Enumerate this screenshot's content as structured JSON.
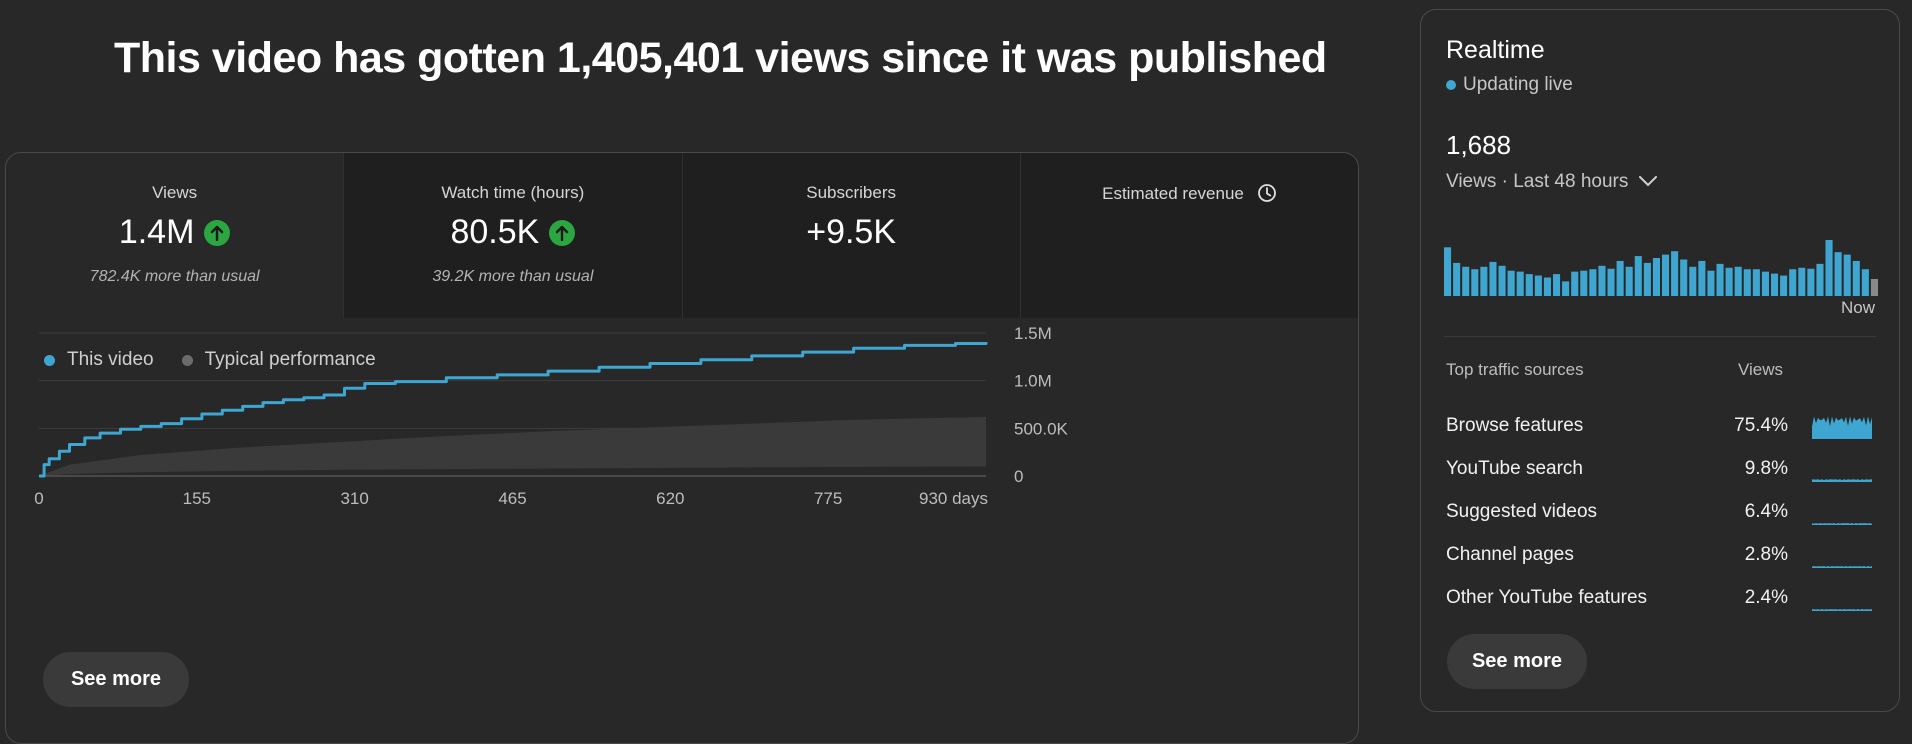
{
  "headline": "This video has gotten 1,405,401 views since it was published",
  "metrics": [
    {
      "label": "Views",
      "value": "1.4M",
      "trend": "up",
      "sub": "782.4K more than usual"
    },
    {
      "label": "Watch time (hours)",
      "value": "80.5K",
      "trend": "up",
      "sub": "39.2K more than usual"
    },
    {
      "label": "Subscribers",
      "value": "+9.5K",
      "trend": "",
      "sub": ""
    },
    {
      "label": "Estimated revenue",
      "value": "",
      "trend": "",
      "sub": ""
    }
  ],
  "legend": {
    "this_video": "This video",
    "typical": "Typical performance"
  },
  "see_more_label": "See more",
  "colors": {
    "accent": "#3ea6d0",
    "typical_fill": "#3c3c3c",
    "up": "#2ba640"
  },
  "chart_data": {
    "type": "line",
    "xlabel": "",
    "x_tick_labels": [
      "0",
      "155",
      "310",
      "465",
      "620",
      "775",
      "930 days"
    ],
    "x_ticks": [
      0,
      155,
      310,
      465,
      620,
      775,
      930
    ],
    "y_tick_labels": [
      "0",
      "500.0K",
      "1.0M",
      "1.5M"
    ],
    "y_ticks": [
      0,
      500000,
      1000000,
      1500000
    ],
    "xlim": [
      0,
      930
    ],
    "ylim": [
      0,
      1500000
    ],
    "grid": true,
    "legend_position": "top-left",
    "series": [
      {
        "name": "This video",
        "x": [
          0,
          5,
          10,
          20,
          30,
          45,
          60,
          80,
          100,
          120,
          140,
          160,
          180,
          200,
          220,
          240,
          260,
          280,
          300,
          320,
          350,
          400,
          450,
          500,
          550,
          600,
          650,
          700,
          750,
          800,
          850,
          900,
          930
        ],
        "y": [
          0,
          120000,
          180000,
          260000,
          330000,
          400000,
          450000,
          490000,
          520000,
          550000,
          600000,
          650000,
          690000,
          730000,
          770000,
          800000,
          820000,
          850000,
          920000,
          970000,
          990000,
          1030000,
          1060000,
          1100000,
          1140000,
          1180000,
          1220000,
          1260000,
          1300000,
          1340000,
          1370000,
          1390000,
          1405401
        ]
      },
      {
        "name": "Typical performance",
        "type": "band",
        "x": [
          0,
          30,
          100,
          200,
          300,
          400,
          500,
          600,
          700,
          800,
          930
        ],
        "upper": [
          0,
          120000,
          220000,
          300000,
          360000,
          420000,
          470000,
          510000,
          550000,
          590000,
          620000
        ],
        "lower": [
          0,
          20000,
          40000,
          55000,
          65000,
          72000,
          78000,
          84000,
          90000,
          95000,
          100000
        ]
      }
    ]
  },
  "realtime": {
    "title": "Realtime",
    "live_label": "Updating live",
    "count": "1,688",
    "range_label": "Views · Last 48 hours",
    "now_label": "Now",
    "bars": [
      1.0,
      0.68,
      0.6,
      0.55,
      0.6,
      0.7,
      0.62,
      0.52,
      0.5,
      0.45,
      0.42,
      0.38,
      0.45,
      0.3,
      0.5,
      0.52,
      0.55,
      0.62,
      0.56,
      0.72,
      0.6,
      0.82,
      0.68,
      0.78,
      0.85,
      0.92,
      0.75,
      0.6,
      0.72,
      0.52,
      0.66,
      0.58,
      0.6,
      0.55,
      0.55,
      0.5,
      0.46,
      0.42,
      0.55,
      0.58,
      0.56,
      0.66,
      1.15,
      0.9,
      0.85,
      0.72,
      0.55,
      0.35
    ],
    "traffic_header": {
      "source": "Top traffic sources",
      "views": "Views"
    },
    "traffic_sources": [
      {
        "name": "Browse features",
        "pct": "75.4%",
        "share": 0.754
      },
      {
        "name": "YouTube search",
        "pct": "9.8%",
        "share": 0.098
      },
      {
        "name": "Suggested videos",
        "pct": "6.4%",
        "share": 0.064
      },
      {
        "name": "Channel pages",
        "pct": "2.8%",
        "share": 0.028
      },
      {
        "name": "Other YouTube features",
        "pct": "2.4%",
        "share": 0.024
      }
    ],
    "see_more_label": "See more"
  }
}
